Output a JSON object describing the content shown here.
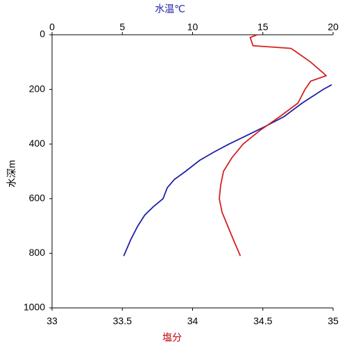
{
  "chart_data": {
    "type": "line",
    "xlabel": "水温℃",
    "x2label": "塩分",
    "ylabel": "水深m",
    "xlim": [
      0,
      20
    ],
    "xticks": [
      0,
      5,
      10,
      15,
      20
    ],
    "x2lim": [
      33,
      35
    ],
    "x2ticks": [
      33,
      33.5,
      34,
      34.5,
      35
    ],
    "ylim": [
      0,
      1000
    ],
    "yticks": [
      0,
      200,
      400,
      600,
      800,
      1000
    ],
    "y_inverted": true,
    "grid": false,
    "series": [
      {
        "color": "#1f1fa8",
        "axis": "x",
        "depth": [
          183,
          200,
          250,
          300,
          340,
          370,
          400,
          430,
          460,
          500,
          530,
          560,
          600,
          630,
          660,
          700,
          750,
          810
        ],
        "values": [
          19.9,
          19.3,
          17.8,
          16.5,
          15.0,
          13.8,
          12.6,
          11.5,
          10.5,
          9.5,
          8.7,
          8.2,
          7.9,
          7.2,
          6.6,
          6.1,
          5.6,
          5.1
        ]
      },
      {
        "color": "#d42020",
        "axis": "x2",
        "depth": [
          0,
          10,
          40,
          50,
          60,
          100,
          140,
          150,
          170,
          200,
          250,
          300,
          350,
          400,
          450,
          500,
          550,
          600,
          650,
          700,
          750,
          810
        ],
        "values": [
          34.46,
          34.41,
          34.43,
          34.7,
          34.73,
          34.84,
          34.93,
          34.95,
          34.84,
          34.8,
          34.75,
          34.62,
          34.48,
          34.36,
          34.28,
          34.22,
          34.2,
          34.19,
          34.21,
          34.25,
          34.29,
          34.34
        ]
      }
    ]
  }
}
